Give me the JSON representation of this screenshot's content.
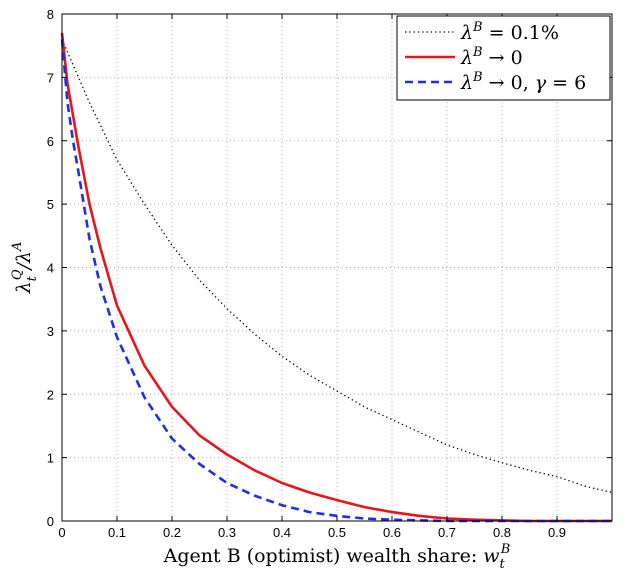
{
  "chart_data": {
    "type": "line",
    "title": "",
    "xlabel": "Agent B (optimist) wealth share: w_t^B",
    "ylabel": "λ_t^Q/λ^A",
    "xlim": [
      0,
      1
    ],
    "ylim": [
      0,
      8
    ],
    "xticks": [
      0,
      0.1,
      0.2,
      0.3,
      0.4,
      0.5,
      0.6,
      0.7,
      0.8,
      0.9
    ],
    "xtick_labels": [
      "0",
      "0.1",
      "0.2",
      "0.3",
      "0.4",
      "0.5",
      "0.6",
      "0.7",
      "0.8",
      "0.9"
    ],
    "yticks": [
      0,
      1,
      2,
      3,
      4,
      5,
      6,
      7,
      8
    ],
    "ytick_labels": [
      "0",
      "1",
      "2",
      "3",
      "4",
      "5",
      "6",
      "7",
      "8"
    ],
    "grid": true,
    "legend_position": "top-right",
    "series": [
      {
        "name": "λ^B = 0.1%",
        "color": "#000000",
        "style": "dotted",
        "x": [
          0,
          0.05,
          0.1,
          0.15,
          0.2,
          0.25,
          0.3,
          0.35,
          0.4,
          0.45,
          0.5,
          0.55,
          0.6,
          0.65,
          0.7,
          0.75,
          0.8,
          0.85,
          0.9,
          0.95,
          1.0
        ],
        "y": [
          7.6,
          6.6,
          5.7,
          5.0,
          4.35,
          3.8,
          3.35,
          2.95,
          2.6,
          2.3,
          2.05,
          1.8,
          1.6,
          1.4,
          1.2,
          1.05,
          0.92,
          0.8,
          0.7,
          0.55,
          0.45
        ]
      },
      {
        "name": "λ^B → 0",
        "color": "#e8151b",
        "style": "solid",
        "x": [
          0,
          0.01,
          0.02,
          0.03,
          0.05,
          0.07,
          0.1,
          0.15,
          0.2,
          0.25,
          0.3,
          0.35,
          0.4,
          0.45,
          0.5,
          0.55,
          0.6,
          0.65,
          0.7,
          0.75,
          0.8,
          0.85,
          0.9,
          0.95,
          1.0
        ],
        "y": [
          7.7,
          6.9,
          6.4,
          5.9,
          5.0,
          4.3,
          3.4,
          2.45,
          1.8,
          1.35,
          1.05,
          0.8,
          0.6,
          0.45,
          0.33,
          0.22,
          0.14,
          0.08,
          0.04,
          0.02,
          0.01,
          0.0,
          0.0,
          0.0,
          0.0
        ]
      },
      {
        "name": "λ^B → 0, γ = 6",
        "color": "#1f2ee8",
        "style": "dashed",
        "x": [
          0,
          0.01,
          0.02,
          0.03,
          0.05,
          0.07,
          0.1,
          0.15,
          0.2,
          0.25,
          0.3,
          0.35,
          0.4,
          0.45,
          0.5,
          0.55,
          0.6,
          0.65,
          0.7,
          0.75,
          0.8,
          0.85,
          0.9,
          0.95,
          1.0
        ],
        "y": [
          7.6,
          6.6,
          6.0,
          5.5,
          4.45,
          3.7,
          2.9,
          1.95,
          1.3,
          0.9,
          0.6,
          0.4,
          0.25,
          0.14,
          0.08,
          0.04,
          0.02,
          0.01,
          0.0,
          0.0,
          0.0,
          0.0,
          0.0,
          0.0,
          0.0
        ]
      }
    ]
  }
}
